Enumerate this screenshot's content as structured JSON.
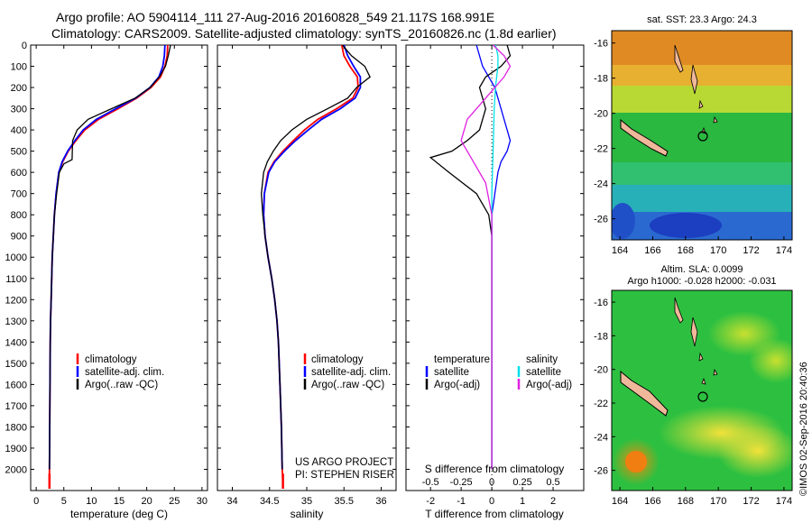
{
  "title_line1": "Argo profile: AO 5904114_111 27-Aug-2016 20160828_549 21.117S 168.991E",
  "title_line2": "Climatology: CARS2009. Satellite-adjusted climatology: synTS_20160826.nc (1.8d earlier)",
  "colors": {
    "clim": "#ff0000",
    "sat": "#0000ff",
    "argo": "#000000",
    "sat_s": "#00e0e8",
    "argo_s": "#e020e0"
  },
  "legend_tp": {
    "clim": "climatology",
    "sat": "satellite-adj. clim.",
    "argo": "Argo(..raw -QC)"
  },
  "legend_diff": {
    "temperature": "temperature",
    "salinity": "salinity",
    "satellite": "satellite",
    "argo": "Argo(-adj)"
  },
  "project": {
    "line1": "US ARGO PROJECT",
    "line2": "PI: STEPHEN RISER"
  },
  "s_diff_label": "S difference from climatology",
  "map_top": {
    "title": "sat. SST: 23.3 Argo: 24.3"
  },
  "map_bottom": {
    "title1": "Altim. SLA: 0.0099",
    "title2": "Argo h1000: -0.028 h2000: -0.031"
  },
  "credit": "©IMOS 02-Sep-2016 20:40:36",
  "chart_data": [
    {
      "type": "line",
      "xlabel": "temperature (deg C)",
      "ylabel": "",
      "xlim": [
        -1,
        31
      ],
      "ylim": [
        2100,
        0
      ],
      "xticks": [
        "0",
        "5",
        "10",
        "15",
        "20",
        "25",
        "30"
      ],
      "yticks": [
        "0",
        "100",
        "200",
        "300",
        "400",
        "500",
        "600",
        "700",
        "800",
        "900",
        "1000",
        "1100",
        "1200",
        "1300",
        "1400",
        "1500",
        "1600",
        "1700",
        "1800",
        "1900",
        "2000"
      ],
      "series": [
        {
          "name": "climatology",
          "color": "#ff0000",
          "x": [
            23.8,
            23.7,
            23.3,
            22.5,
            20.8,
            18.2,
            14.8,
            11.3,
            8.8,
            7.2,
            5.8,
            4.8,
            4.1,
            3.6,
            3.3,
            3.1,
            2.9,
            2.8,
            2.7,
            2.6,
            2.55,
            2.5,
            2.45,
            2.4,
            2.4
          ],
          "y": [
            0,
            50,
            100,
            150,
            200,
            250,
            300,
            350,
            400,
            450,
            500,
            550,
            600,
            700,
            800,
            900,
            1000,
            1100,
            1200,
            1300,
            1400,
            1600,
            1800,
            2000,
            2070
          ]
        },
        {
          "name": "satellite-adj. clim.",
          "color": "#0000ff",
          "x": [
            23.3,
            23.2,
            22.9,
            22.2,
            20.6,
            18.0,
            14.4,
            10.9,
            8.5,
            7.0,
            5.7,
            4.7,
            4.1,
            3.6,
            3.3,
            3.1,
            2.9,
            2.8,
            2.7,
            2.6,
            2.55,
            2.5,
            2.45,
            2.4
          ],
          "y": [
            0,
            50,
            100,
            150,
            200,
            250,
            300,
            350,
            400,
            450,
            500,
            550,
            600,
            700,
            800,
            900,
            1000,
            1100,
            1200,
            1300,
            1400,
            1600,
            1800,
            2000
          ]
        },
        {
          "name": "Argo(..raw -QC)",
          "color": "#000000",
          "x": [
            24.3,
            23.9,
            23.4,
            22.3,
            20.6,
            17.9,
            13.6,
            9.4,
            7.4,
            6.6,
            6.5,
            5.0,
            4.2,
            3.7,
            3.3,
            3.1,
            2.9,
            2.8,
            2.7,
            2.6,
            2.55,
            2.5,
            2.45,
            2.4
          ],
          "y": [
            0,
            50,
            100,
            150,
            200,
            250,
            300,
            350,
            400,
            450,
            540,
            560,
            600,
            700,
            800,
            900,
            1000,
            1100,
            1200,
            1300,
            1400,
            1600,
            1800,
            2000
          ]
        }
      ]
    },
    {
      "type": "line",
      "xlabel": "salinity",
      "xlim": [
        33.8,
        36.2
      ],
      "ylim": [
        2100,
        0
      ],
      "xticks": [
        "34",
        "34.5",
        "35",
        "35.5",
        "36"
      ],
      "series": [
        {
          "name": "climatology",
          "color": "#ff0000",
          "x": [
            35.47,
            35.5,
            35.58,
            35.68,
            35.69,
            35.62,
            35.4,
            35.15,
            34.97,
            34.82,
            34.68,
            34.56,
            34.48,
            34.43,
            34.42,
            34.44,
            34.48,
            34.53,
            34.57,
            34.6,
            34.62,
            34.64,
            34.66,
            34.67,
            34.68
          ],
          "y": [
            0,
            50,
            100,
            150,
            200,
            250,
            300,
            350,
            400,
            450,
            500,
            550,
            600,
            700,
            800,
            900,
            1000,
            1100,
            1200,
            1300,
            1400,
            1600,
            1800,
            2000,
            2070
          ]
        },
        {
          "name": "satellite-adj. clim.",
          "color": "#0000ff",
          "x": [
            35.5,
            35.55,
            35.63,
            35.72,
            35.72,
            35.65,
            35.45,
            35.2,
            35.02,
            34.85,
            34.7,
            34.57,
            34.49,
            34.43,
            34.42,
            34.44,
            34.48,
            34.53,
            34.57,
            34.6,
            34.62,
            34.64,
            34.66,
            34.67
          ],
          "y": [
            0,
            50,
            100,
            150,
            200,
            250,
            300,
            350,
            400,
            450,
            500,
            550,
            600,
            700,
            800,
            900,
            1000,
            1100,
            1200,
            1300,
            1400,
            1600,
            1800,
            2000
          ]
        },
        {
          "name": "Argo(..raw -QC)",
          "color": "#000000",
          "x": [
            35.48,
            35.6,
            35.78,
            35.85,
            35.67,
            35.55,
            35.28,
            35.0,
            34.8,
            34.65,
            34.55,
            34.47,
            34.42,
            34.39,
            34.41,
            34.44,
            34.48,
            34.53,
            34.57,
            34.6,
            34.62,
            34.64,
            34.66,
            34.67
          ],
          "y": [
            0,
            50,
            100,
            150,
            200,
            250,
            300,
            350,
            400,
            450,
            500,
            550,
            600,
            700,
            800,
            900,
            1000,
            1100,
            1200,
            1300,
            1400,
            1600,
            1800,
            2000
          ]
        }
      ]
    },
    {
      "type": "line",
      "xlabel": "T difference from climatology",
      "xlim": [
        -2.8,
        3.0
      ],
      "ylim": [
        2100,
        0
      ],
      "xticks": [
        "-2",
        "-1",
        "0",
        "1",
        "2"
      ],
      "s_xticks": [
        "-0.5",
        "-0.25",
        "0",
        "0.25",
        "0.5"
      ],
      "series": [
        {
          "name": "temperature satellite",
          "color": "#0000ff",
          "x": [
            -0.5,
            -0.4,
            -0.3,
            -0.1,
            0.1,
            0.3,
            0.5,
            0.6,
            0.5,
            0.3,
            0.2,
            0.1,
            0.0,
            0.0,
            0.0,
            0.0,
            0.0,
            0.0
          ],
          "y": [
            0,
            50,
            100,
            150,
            200,
            300,
            400,
            450,
            500,
            550,
            600,
            700,
            800,
            900,
            1000,
            1200,
            1600,
            2000
          ]
        },
        {
          "name": "temperature Argo(-adj)",
          "color": "#000000",
          "x": [
            0.5,
            0.6,
            0.3,
            -0.2,
            -0.4,
            -0.2,
            -0.4,
            -0.8,
            -1.3,
            -2.0,
            -1.4,
            -0.5,
            -0.1,
            0.0,
            0.0,
            0.0,
            0.0,
            0.0
          ],
          "y": [
            0,
            50,
            100,
            150,
            200,
            300,
            400,
            450,
            500,
            530,
            600,
            700,
            800,
            900,
            1000,
            1200,
            1600,
            2000
          ]
        },
        {
          "name": "salinity satellite",
          "color": "#00e0e8",
          "x": [
            0.03,
            0.05,
            0.05,
            0.04,
            0.03,
            0.02,
            0.01,
            0.0,
            0.0,
            0.0,
            0.0,
            0.0
          ],
          "y": [
            0,
            50,
            100,
            150,
            200,
            300,
            500,
            700,
            900,
            1200,
            1600,
            2000
          ]
        },
        {
          "name": "salinity Argo(-adj)",
          "color": "#e020e0",
          "x": [
            0.01,
            0.1,
            0.15,
            0.1,
            -0.05,
            -0.2,
            -0.25,
            -0.15,
            -0.05,
            0.0,
            0.0,
            0.0,
            0.0
          ],
          "y": [
            0,
            50,
            100,
            150,
            250,
            350,
            450,
            550,
            650,
            800,
            1000,
            1500,
            2000
          ]
        }
      ]
    },
    {
      "type": "heatmap",
      "title": "sat. SST: 23.3 Argo: 24.3",
      "xticks": [
        "164",
        "166",
        "168",
        "170",
        "172",
        "174"
      ],
      "yticks": [
        "-16",
        "-18",
        "-20",
        "-22",
        "-24",
        "-26"
      ],
      "xlim": [
        163.5,
        174.5
      ],
      "ylim": [
        -27.2,
        -15.3
      ],
      "argo_position": {
        "lon": 168.991,
        "lat": -21.117
      }
    },
    {
      "type": "heatmap",
      "title": "Altim. SLA: 0.0099",
      "xticks": [
        "164",
        "166",
        "168",
        "170",
        "172",
        "174"
      ],
      "yticks": [
        "-16",
        "-18",
        "-20",
        "-22",
        "-24",
        "-26"
      ],
      "xlim": [
        163.5,
        174.5
      ],
      "ylim": [
        -27.2,
        -15.3
      ],
      "argo_position": {
        "lon": 168.991,
        "lat": -21.117
      }
    }
  ]
}
